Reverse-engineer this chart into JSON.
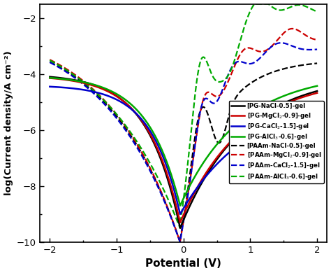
{
  "xlabel": "Potential (V)",
  "ylabel": "log(Current density/A cm⁻²)",
  "xlim": [
    -2.15,
    2.15
  ],
  "ylim": [
    -10,
    -1.5
  ],
  "xticks": [
    -2,
    -1,
    0,
    1,
    2
  ],
  "yticks": [
    -10,
    -8,
    -6,
    -4,
    -2
  ],
  "solid_colors": [
    "#000000",
    "#cc0000",
    "#0000cc",
    "#00aa00"
  ],
  "dashed_colors": [
    "#000000",
    "#cc0000",
    "#0000cc",
    "#00aa00"
  ],
  "legend_solid": [
    "[PG-NaCl-0.5]-gel",
    "[PG-MgCl$_2$-0.9]-gel",
    "[PG-CaCl$_2$-1.5]-gel",
    "[PG-AlCl$_3$-0.6]-gel"
  ],
  "legend_dashed": [
    "[PAAm-NaCl-0.5]-gel",
    "[PAAm-MgCl$_2$-0.9]-gel",
    "[PAAm-CaCl$_2$-1.5]-gel",
    "[PAAm-AlCl$_3$-0.6]-gel"
  ],
  "lw_solid": 1.8,
  "lw_dashed": 1.6
}
